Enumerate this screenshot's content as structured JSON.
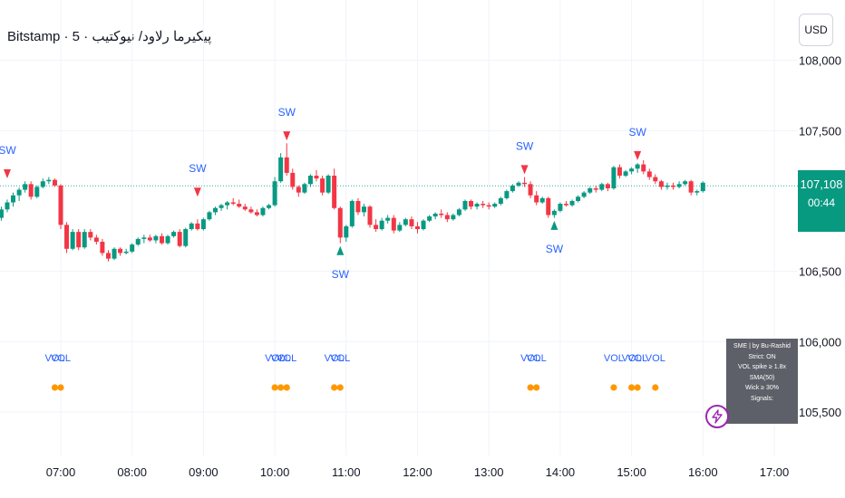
{
  "header": {
    "title": "Bitstamp · 5 · پیکیرما رلاود/ نیوکتیب",
    "currency_button": "USD"
  },
  "price_badge": {
    "price": "107,108",
    "countdown": "00:44",
    "color": "#089981"
  },
  "info_box": {
    "lines": [
      "SME | by Bu-Rashid",
      "Strict: ON",
      "VOL spike ≥ 1.8x SMA(50)",
      "Wick ≥ 30%",
      "Signals:"
    ]
  },
  "icons": {
    "bolt": "lightning-bolt-icon"
  },
  "colors": {
    "up": "#089981",
    "down": "#f23645",
    "label": "#2962ff",
    "dot": "#ff9800",
    "last_line": "#089981"
  },
  "chart_data": {
    "type": "candlestick",
    "y_ticks": [
      "108,000",
      "107,500",
      "106,500",
      "106,000",
      "105,500"
    ],
    "y_tick_values": [
      108000,
      107500,
      106500,
      106000,
      105500
    ],
    "x_ticks": [
      "07:00",
      "08:00",
      "09:00",
      "10:00",
      "11:00",
      "12:00",
      "13:00",
      "14:00",
      "15:00",
      "16:00",
      "17:00"
    ],
    "x_tick_hours": [
      7,
      8,
      9,
      10,
      11,
      12,
      13,
      14,
      15,
      16,
      17
    ],
    "last_price": 107108,
    "candles": [
      [
        6.0,
        106795,
        106855,
        106770,
        106830
      ],
      [
        6.083,
        106830,
        106900,
        106805,
        106880
      ],
      [
        6.167,
        106880,
        106960,
        106860,
        106940
      ],
      [
        6.25,
        106940,
        107010,
        106920,
        106990
      ],
      [
        6.333,
        106990,
        107060,
        106960,
        107040
      ],
      [
        6.417,
        107040,
        107095,
        107000,
        107080
      ],
      [
        6.5,
        107080,
        107140,
        107060,
        107120
      ],
      [
        6.583,
        107120,
        107140,
        107010,
        107030
      ],
      [
        6.667,
        107030,
        107110,
        107020,
        107100
      ],
      [
        6.75,
        107100,
        107160,
        107090,
        107140
      ],
      [
        6.833,
        107140,
        107170,
        107120,
        107150
      ],
      [
        6.917,
        107150,
        107160,
        107100,
        107110
      ],
      [
        7.0,
        107110,
        107120,
        106800,
        106830
      ],
      [
        7.083,
        106830,
        106850,
        106630,
        106660
      ],
      [
        7.167,
        106660,
        106800,
        106650,
        106780
      ],
      [
        7.25,
        106780,
        106800,
        106650,
        106670
      ],
      [
        7.333,
        106670,
        106800,
        106660,
        106780
      ],
      [
        7.417,
        106780,
        106800,
        106720,
        106740
      ],
      [
        7.5,
        106740,
        106760,
        106690,
        106710
      ],
      [
        7.583,
        106710,
        106730,
        106610,
        106630
      ],
      [
        7.667,
        106630,
        106650,
        106570,
        106590
      ],
      [
        7.75,
        106590,
        106670,
        106580,
        106660
      ],
      [
        7.833,
        106660,
        106670,
        106610,
        106630
      ],
      [
        7.917,
        106630,
        106660,
        106620,
        106640
      ],
      [
        8.0,
        106640,
        106700,
        106630,
        106690
      ],
      [
        8.083,
        106690,
        106740,
        106680,
        106730
      ],
      [
        8.167,
        106730,
        106760,
        106700,
        106740
      ],
      [
        8.25,
        106740,
        106760,
        106710,
        106720
      ],
      [
        8.333,
        106720,
        106760,
        106700,
        106750
      ],
      [
        8.417,
        106750,
        106770,
        106690,
        106700
      ],
      [
        8.5,
        106700,
        106760,
        106690,
        106750
      ],
      [
        8.583,
        106750,
        106790,
        106740,
        106780
      ],
      [
        8.667,
        106780,
        106800,
        106670,
        106680
      ],
      [
        8.75,
        106680,
        106810,
        106670,
        106800
      ],
      [
        8.833,
        106800,
        106850,
        106790,
        106840
      ],
      [
        8.917,
        106840,
        106870,
        106790,
        106800
      ],
      [
        9.0,
        106800,
        106880,
        106790,
        106870
      ],
      [
        9.083,
        106870,
        106930,
        106860,
        106920
      ],
      [
        9.167,
        106920,
        106960,
        106900,
        106950
      ],
      [
        9.25,
        106950,
        106980,
        106930,
        106970
      ],
      [
        9.333,
        106970,
        107000,
        106940,
        106990
      ],
      [
        9.417,
        106990,
        107020,
        106970,
        106980
      ],
      [
        9.5,
        106980,
        107010,
        106950,
        106960
      ],
      [
        9.583,
        106960,
        106980,
        106930,
        106940
      ],
      [
        9.667,
        106940,
        106960,
        106910,
        106920
      ],
      [
        9.75,
        106920,
        106940,
        106890,
        106900
      ],
      [
        9.833,
        106900,
        106960,
        106890,
        106950
      ],
      [
        9.917,
        106950,
        106980,
        106940,
        106970
      ],
      [
        10.0,
        106970,
        107170,
        106960,
        107140
      ],
      [
        10.083,
        107140,
        107340,
        107130,
        107310
      ],
      [
        10.167,
        107310,
        107410,
        107180,
        107200
      ],
      [
        10.25,
        107200,
        107230,
        107080,
        107100
      ],
      [
        10.333,
        107100,
        107110,
        107030,
        107060
      ],
      [
        10.417,
        107060,
        107130,
        107050,
        107120
      ],
      [
        10.5,
        107120,
        107190,
        107100,
        107180
      ],
      [
        10.583,
        107180,
        107220,
        107140,
        107160
      ],
      [
        10.667,
        107160,
        107180,
        107040,
        107060
      ],
      [
        10.75,
        107060,
        107190,
        107050,
        107180
      ],
      [
        10.833,
        107180,
        107230,
        106940,
        106950
      ],
      [
        10.917,
        106950,
        106960,
        106700,
        106740
      ],
      [
        11.0,
        106740,
        106830,
        106710,
        106820
      ],
      [
        11.083,
        106820,
        107010,
        106810,
        107000
      ],
      [
        11.167,
        107000,
        107020,
        106900,
        106920
      ],
      [
        11.25,
        106920,
        106980,
        106890,
        106960
      ],
      [
        11.333,
        106960,
        106970,
        106810,
        106830
      ],
      [
        11.417,
        106830,
        106870,
        106780,
        106800
      ],
      [
        11.5,
        106800,
        106880,
        106790,
        106860
      ],
      [
        11.583,
        106860,
        106900,
        106840,
        106880
      ],
      [
        11.667,
        106880,
        106900,
        106770,
        106790
      ],
      [
        11.75,
        106790,
        106850,
        106780,
        106830
      ],
      [
        11.833,
        106830,
        106880,
        106820,
        106870
      ],
      [
        11.917,
        106870,
        106890,
        106800,
        106820
      ],
      [
        12.0,
        106820,
        106850,
        106770,
        106800
      ],
      [
        12.083,
        106800,
        106870,
        106790,
        106860
      ],
      [
        12.167,
        106860,
        106900,
        106850,
        106890
      ],
      [
        12.25,
        106890,
        106920,
        106870,
        106910
      ],
      [
        12.333,
        106910,
        106940,
        106880,
        106900
      ],
      [
        12.417,
        106900,
        106920,
        106850,
        106870
      ],
      [
        12.5,
        106870,
        106910,
        106860,
        106900
      ],
      [
        12.583,
        106900,
        106950,
        106890,
        106940
      ],
      [
        12.667,
        106940,
        107010,
        106930,
        107000
      ],
      [
        12.75,
        107000,
        107010,
        106940,
        106960
      ],
      [
        12.833,
        106960,
        106990,
        106940,
        106980
      ],
      [
        12.917,
        106980,
        107000,
        106950,
        106970
      ],
      [
        13.0,
        106970,
        106990,
        106940,
        106960
      ],
      [
        13.083,
        106960,
        106990,
        106950,
        106980
      ],
      [
        13.167,
        106980,
        107030,
        106970,
        107020
      ],
      [
        13.25,
        107020,
        107080,
        107010,
        107070
      ],
      [
        13.333,
        107070,
        107120,
        107060,
        107110
      ],
      [
        13.417,
        107110,
        107140,
        107100,
        107130
      ],
      [
        13.5,
        107130,
        107170,
        107100,
        107120
      ],
      [
        13.583,
        107120,
        107140,
        107020,
        107040
      ],
      [
        13.667,
        107040,
        107070,
        106970,
        106990
      ],
      [
        13.75,
        106990,
        107030,
        106980,
        107020
      ],
      [
        13.833,
        107020,
        107030,
        106880,
        106900
      ],
      [
        13.917,
        106900,
        106940,
        106880,
        106930
      ],
      [
        14.0,
        106930,
        106990,
        106920,
        106980
      ],
      [
        14.083,
        106980,
        107000,
        106960,
        106970
      ],
      [
        14.167,
        106970,
        107010,
        106960,
        107000
      ],
      [
        14.25,
        107000,
        107040,
        106990,
        107030
      ],
      [
        14.333,
        107030,
        107070,
        107020,
        107060
      ],
      [
        14.417,
        107060,
        107100,
        107050,
        107090
      ],
      [
        14.5,
        107090,
        107110,
        107060,
        107080
      ],
      [
        14.583,
        107080,
        107130,
        107070,
        107120
      ],
      [
        14.667,
        107120,
        107130,
        107070,
        107090
      ],
      [
        14.75,
        107090,
        107250,
        107080,
        107240
      ],
      [
        14.833,
        107240,
        107260,
        107160,
        107180
      ],
      [
        14.917,
        107180,
        107220,
        107170,
        107210
      ],
      [
        15.0,
        107210,
        107240,
        107190,
        107230
      ],
      [
        15.083,
        107230,
        107270,
        107200,
        107260
      ],
      [
        15.167,
        107260,
        107290,
        107190,
        107210
      ],
      [
        15.25,
        107210,
        107230,
        107150,
        107170
      ],
      [
        15.333,
        107170,
        107190,
        107120,
        107140
      ],
      [
        15.417,
        107140,
        107150,
        107080,
        107100
      ],
      [
        15.5,
        107100,
        107130,
        107080,
        107110
      ],
      [
        15.583,
        107110,
        107130,
        107080,
        107100
      ],
      [
        15.667,
        107100,
        107140,
        107090,
        107120
      ],
      [
        15.75,
        107120,
        107150,
        107110,
        107140
      ],
      [
        15.833,
        107140,
        107150,
        107040,
        107060
      ],
      [
        15.917,
        107060,
        107080,
        107040,
        107070
      ],
      [
        16.0,
        107070,
        107140,
        107060,
        107130
      ]
    ],
    "sw_markers": [
      {
        "time": 6.25,
        "price": 107180,
        "side": "top",
        "label": "SW"
      },
      {
        "time": 8.917,
        "price": 107050,
        "side": "top",
        "label": "SW"
      },
      {
        "time": 10.167,
        "price": 107450,
        "side": "top",
        "label": "SW"
      },
      {
        "time": 10.917,
        "price": 106660,
        "side": "bottom",
        "label": "SW"
      },
      {
        "time": 13.5,
        "price": 107210,
        "side": "top",
        "label": "SW"
      },
      {
        "time": 13.917,
        "price": 106840,
        "side": "bottom",
        "label": "SW"
      },
      {
        "time": 15.083,
        "price": 107310,
        "side": "top",
        "label": "SW"
      }
    ],
    "vol_markers": [
      {
        "time": 6.917,
        "label": "VOL"
      },
      {
        "time": 7.0,
        "label": "VOL"
      },
      {
        "time": 10.0,
        "label": "VOL"
      },
      {
        "time": 10.083,
        "label": "VOL"
      },
      {
        "time": 10.167,
        "label": "VOL"
      },
      {
        "time": 10.833,
        "label": "VOL"
      },
      {
        "time": 10.917,
        "label": "VOL"
      },
      {
        "time": 13.583,
        "label": "VOL"
      },
      {
        "time": 13.667,
        "label": "VOL"
      },
      {
        "time": 14.75,
        "label": "VOL"
      },
      {
        "time": 15.0,
        "label": "VOL"
      },
      {
        "time": 15.083,
        "label": "VOL"
      },
      {
        "time": 15.333,
        "label": "VOL"
      }
    ]
  }
}
